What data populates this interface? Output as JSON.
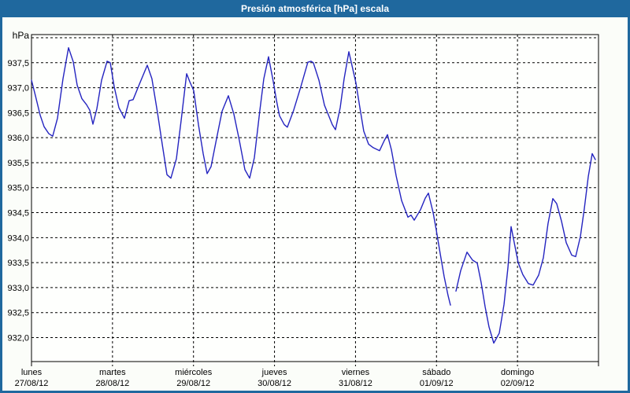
{
  "window": {
    "title": "Presión atmosférica [hPa] escala"
  },
  "colors": {
    "titlebar_bg": "#1f689e",
    "frame_border": "#1f689e",
    "title_text": "#ffffff",
    "background": "#fbfdf9",
    "plot_bg": "#fefffd",
    "grid": "#000000",
    "plot_frame": "#000000",
    "line": "#2424c0",
    "label_text": "#000000"
  },
  "chart_data": {
    "type": "line",
    "title": "Presión atmosférica [hPa] escala",
    "ylabel": "hPa",
    "unit_label": "hPa",
    "grid": "dashed",
    "legend": "none",
    "ylim": [
      931.5,
      938.05
    ],
    "x_range_days": [
      0,
      7
    ],
    "y_gridline_values": [
      938.0,
      937.5,
      937.0,
      936.5,
      936.0,
      935.5,
      935.0,
      934.5,
      934.0,
      933.5,
      933.0,
      932.5,
      932.0
    ],
    "y_tick_labels": [
      {
        "value": 937.5,
        "label": "937,5"
      },
      {
        "value": 937.0,
        "label": "937,0"
      },
      {
        "value": 936.5,
        "label": "936,5"
      },
      {
        "value": 936.0,
        "label": "936,0"
      },
      {
        "value": 935.5,
        "label": "935,5"
      },
      {
        "value": 935.0,
        "label": "935,0"
      },
      {
        "value": 934.5,
        "label": "934,5"
      },
      {
        "value": 934.0,
        "label": "934,0"
      },
      {
        "value": 933.5,
        "label": "933,5"
      },
      {
        "value": 933.0,
        "label": "933,0"
      },
      {
        "value": 932.5,
        "label": "932,5"
      },
      {
        "value": 932.0,
        "label": "932,0"
      }
    ],
    "x_ticks": [
      {
        "pos": 0,
        "day": "lunes",
        "date": "27/08/12"
      },
      {
        "pos": 1,
        "day": "martes",
        "date": "28/08/12"
      },
      {
        "pos": 2,
        "day": "miércoles",
        "date": "29/08/12"
      },
      {
        "pos": 3,
        "day": "jueves",
        "date": "30/08/12"
      },
      {
        "pos": 4,
        "day": "viernes",
        "date": "31/08/12"
      },
      {
        "pos": 5,
        "day": "sábado",
        "date": "01/09/12"
      },
      {
        "pos": 6,
        "day": "domingo",
        "date": "02/09/12"
      }
    ],
    "x_unit": "days since first tick",
    "series": [
      {
        "name": "presión atmosférica",
        "color": "#2424c0",
        "segments": [
          [
            [
              0.0,
              937.15
            ],
            [
              0.049,
              936.84
            ],
            [
              0.107,
              936.45
            ],
            [
              0.156,
              936.22
            ],
            [
              0.214,
              936.08
            ],
            [
              0.262,
              936.03
            ],
            [
              0.321,
              936.39
            ],
            [
              0.389,
              937.18
            ],
            [
              0.457,
              937.8
            ],
            [
              0.515,
              937.52
            ],
            [
              0.564,
              937.05
            ],
            [
              0.622,
              936.78
            ],
            [
              0.68,
              936.66
            ],
            [
              0.719,
              936.55
            ],
            [
              0.758,
              936.27
            ],
            [
              0.807,
              936.58
            ],
            [
              0.865,
              937.15
            ],
            [
              0.933,
              937.53
            ],
            [
              0.972,
              937.5
            ],
            [
              1.021,
              937.02
            ],
            [
              1.079,
              936.6
            ],
            [
              1.147,
              936.39
            ],
            [
              1.206,
              936.74
            ],
            [
              1.254,
              936.76
            ],
            [
              1.332,
              937.07
            ],
            [
              1.429,
              937.45
            ],
            [
              1.487,
              937.18
            ],
            [
              1.556,
              936.5
            ],
            [
              1.614,
              935.87
            ],
            [
              1.672,
              935.26
            ],
            [
              1.721,
              935.19
            ],
            [
              1.789,
              935.58
            ],
            [
              1.847,
              936.34
            ],
            [
              1.915,
              937.28
            ],
            [
              1.954,
              937.12
            ],
            [
              2.003,
              936.94
            ],
            [
              2.061,
              936.26
            ],
            [
              2.119,
              935.68
            ],
            [
              2.168,
              935.28
            ],
            [
              2.217,
              935.42
            ],
            [
              2.285,
              935.98
            ],
            [
              2.353,
              936.53
            ],
            [
              2.431,
              936.84
            ],
            [
              2.499,
              936.47
            ],
            [
              2.567,
              935.94
            ],
            [
              2.635,
              935.36
            ],
            [
              2.693,
              935.19
            ],
            [
              2.751,
              935.6
            ],
            [
              2.819,
              936.55
            ],
            [
              2.868,
              937.18
            ],
            [
              2.926,
              937.62
            ],
            [
              2.984,
              937.13
            ],
            [
              3.023,
              936.76
            ],
            [
              3.062,
              936.44
            ],
            [
              3.121,
              936.26
            ],
            [
              3.159,
              936.21
            ],
            [
              3.237,
              936.55
            ],
            [
              3.325,
              937.02
            ],
            [
              3.412,
              937.51
            ],
            [
              3.451,
              937.53
            ],
            [
              3.48,
              937.5
            ],
            [
              3.549,
              937.15
            ],
            [
              3.617,
              936.65
            ],
            [
              3.655,
              936.5
            ],
            [
              3.714,
              936.26
            ],
            [
              3.753,
              936.16
            ],
            [
              3.811,
              936.6
            ],
            [
              3.86,
              937.18
            ],
            [
              3.918,
              937.72
            ],
            [
              4.005,
              937.1
            ],
            [
              4.054,
              936.6
            ],
            [
              4.102,
              936.13
            ],
            [
              4.161,
              935.87
            ],
            [
              4.219,
              935.8
            ],
            [
              4.297,
              935.74
            ],
            [
              4.355,
              935.94
            ],
            [
              4.394,
              936.06
            ],
            [
              4.443,
              935.76
            ],
            [
              4.501,
              935.24
            ],
            [
              4.569,
              934.74
            ],
            [
              4.647,
              934.41
            ],
            [
              4.686,
              934.45
            ],
            [
              4.725,
              934.35
            ],
            [
              4.803,
              934.56
            ],
            [
              4.861,
              934.79
            ],
            [
              4.9,
              934.89
            ],
            [
              4.958,
              934.5
            ],
            [
              4.997,
              934.15
            ],
            [
              5.046,
              933.68
            ],
            [
              5.094,
              933.22
            ],
            [
              5.143,
              932.84
            ],
            [
              5.172,
              932.65
            ]
          ],
          [
            [
              5.24,
              932.93
            ],
            [
              5.299,
              933.34
            ],
            [
              5.376,
              933.71
            ],
            [
              5.444,
              933.55
            ],
            [
              5.503,
              933.49
            ],
            [
              5.551,
              933.1
            ],
            [
              5.6,
              932.62
            ],
            [
              5.649,
              932.21
            ],
            [
              5.707,
              931.89
            ],
            [
              5.775,
              932.09
            ],
            [
              5.833,
              932.66
            ],
            [
              5.882,
              933.4
            ],
            [
              5.921,
              934.22
            ],
            [
              5.969,
              933.82
            ],
            [
              6.008,
              933.5
            ],
            [
              6.066,
              933.26
            ],
            [
              6.134,
              933.08
            ],
            [
              6.193,
              933.05
            ],
            [
              6.261,
              933.25
            ],
            [
              6.319,
              933.6
            ],
            [
              6.377,
              934.28
            ],
            [
              6.436,
              934.78
            ],
            [
              6.484,
              934.68
            ],
            [
              6.543,
              934.33
            ],
            [
              6.601,
              933.9
            ],
            [
              6.669,
              933.65
            ],
            [
              6.718,
              933.62
            ],
            [
              6.776,
              934.02
            ],
            [
              6.825,
              934.58
            ],
            [
              6.874,
              935.22
            ],
            [
              6.922,
              935.68
            ],
            [
              6.961,
              935.56
            ]
          ]
        ]
      }
    ]
  }
}
